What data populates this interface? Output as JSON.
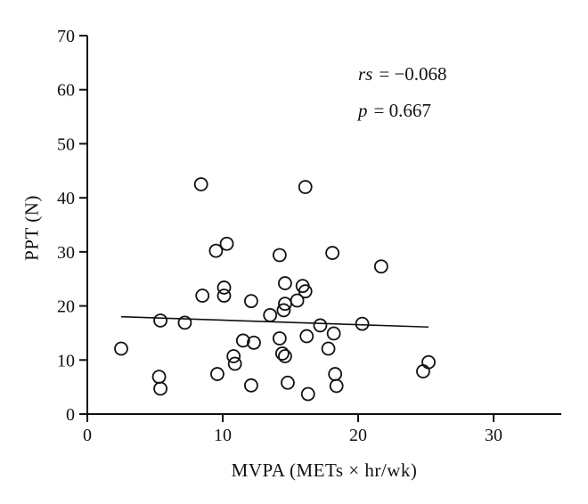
{
  "figure": {
    "background": "#ffffff",
    "ink_color": "#111111"
  },
  "chart_data": {
    "type": "scatter",
    "title": "",
    "xlabel": "MVPA (METs × hr/wk)",
    "ylabel": "PPT (N)",
    "xlim": [
      0,
      35
    ],
    "ylim": [
      0,
      70
    ],
    "x_ticks": [
      0,
      10,
      20,
      30
    ],
    "y_ticks": [
      0,
      10,
      20,
      30,
      40,
      50,
      60,
      70
    ],
    "grid": false,
    "legend": null,
    "marker": {
      "shape": "open-circle",
      "radius_px": 7,
      "stroke_width_px": 1.8,
      "fill": "none",
      "color": "#111111"
    },
    "points": [
      [
        8.4,
        42.5
      ],
      [
        16.1,
        42.0
      ],
      [
        9.5,
        30.2
      ],
      [
        10.3,
        31.5
      ],
      [
        14.2,
        29.4
      ],
      [
        18.1,
        29.8
      ],
      [
        21.7,
        27.3
      ],
      [
        8.5,
        21.9
      ],
      [
        10.1,
        23.4
      ],
      [
        10.1,
        21.9
      ],
      [
        12.1,
        20.9
      ],
      [
        14.6,
        24.2
      ],
      [
        15.9,
        23.7
      ],
      [
        16.1,
        22.7
      ],
      [
        14.6,
        20.4
      ],
      [
        15.5,
        21.0
      ],
      [
        13.5,
        18.3
      ],
      [
        14.5,
        19.2
      ],
      [
        5.4,
        17.3
      ],
      [
        7.2,
        16.9
      ],
      [
        17.2,
        16.4
      ],
      [
        20.3,
        16.7
      ],
      [
        18.2,
        14.9
      ],
      [
        2.5,
        12.1
      ],
      [
        11.5,
        13.6
      ],
      [
        12.3,
        13.2
      ],
      [
        14.2,
        14.0
      ],
      [
        16.2,
        14.4
      ],
      [
        17.8,
        12.1
      ],
      [
        14.4,
        11.2
      ],
      [
        14.6,
        10.7
      ],
      [
        10.8,
        10.7
      ],
      [
        10.9,
        9.3
      ],
      [
        9.6,
        7.4
      ],
      [
        5.3,
        6.9
      ],
      [
        5.4,
        4.7
      ],
      [
        12.1,
        5.3
      ],
      [
        14.8,
        5.8
      ],
      [
        16.3,
        3.7
      ],
      [
        18.3,
        7.4
      ],
      [
        18.4,
        5.2
      ],
      [
        25.2,
        9.6
      ],
      [
        24.8,
        7.9
      ]
    ],
    "trendline": {
      "x1": 2.5,
      "y1": 18.0,
      "x2": 25.2,
      "y2": 16.1
    },
    "annotations": [
      {
        "symbol": "rs",
        "text": "= −0.068"
      },
      {
        "symbol": "p",
        "text": "= 0.667"
      }
    ]
  }
}
